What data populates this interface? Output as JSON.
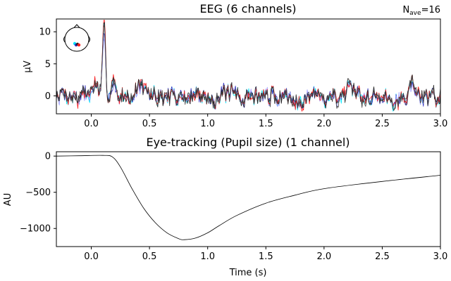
{
  "chart_data": [
    {
      "type": "line",
      "title": "EEG (6 channels)",
      "annotation": "N",
      "annotation_sub": "ave",
      "annotation_value": "=16",
      "xlabel": "",
      "ylabel": "µV",
      "xlim": [
        -0.3,
        3.0
      ],
      "ylim": [
        -2.8,
        12.0
      ],
      "xticks": [
        0.0,
        0.5,
        1.0,
        1.5,
        2.0,
        2.5,
        3.0
      ],
      "xtick_labels": [
        "0.0",
        "0.5",
        "1.0",
        "1.5",
        "2.0",
        "2.5",
        "3.0"
      ],
      "yticks": [
        0,
        5,
        10
      ],
      "ytick_labels": [
        "0",
        "5",
        "10"
      ],
      "channel_colors": [
        "#00e5ff",
        "#3030c0",
        "#9c9cff",
        "#ff1a1a",
        "#222222",
        "#444444"
      ],
      "sensor_inset": true,
      "peak_x": 0.11,
      "peak_y": 11.2
    },
    {
      "type": "line",
      "title": "Eye-tracking (Pupil size) (1 channel)",
      "xlabel": "Time (s)",
      "ylabel": "AU",
      "xlim": [
        -0.3,
        3.0
      ],
      "ylim": [
        -1250,
        60
      ],
      "xticks": [
        0.0,
        0.5,
        1.0,
        1.5,
        2.0,
        2.5,
        3.0
      ],
      "xtick_labels": [
        "0.0",
        "0.5",
        "1.0",
        "1.5",
        "2.0",
        "2.5",
        "3.0"
      ],
      "yticks": [
        0,
        -500,
        -1000
      ],
      "ytick_labels": [
        "0",
        "−500",
        "−1000"
      ],
      "series": [
        {
          "color": "#000000",
          "x": [
            -0.3,
            -0.1,
            0.1,
            0.18,
            0.25,
            0.35,
            0.45,
            0.55,
            0.65,
            0.75,
            0.8,
            0.9,
            1.0,
            1.1,
            1.25,
            1.5,
            1.75,
            2.0,
            2.5,
            3.0
          ],
          "y": [
            0,
            5,
            10,
            -10,
            -150,
            -450,
            -720,
            -920,
            -1060,
            -1140,
            -1155,
            -1130,
            -1060,
            -960,
            -820,
            -650,
            -540,
            -450,
            -350,
            -265
          ]
        }
      ]
    }
  ]
}
